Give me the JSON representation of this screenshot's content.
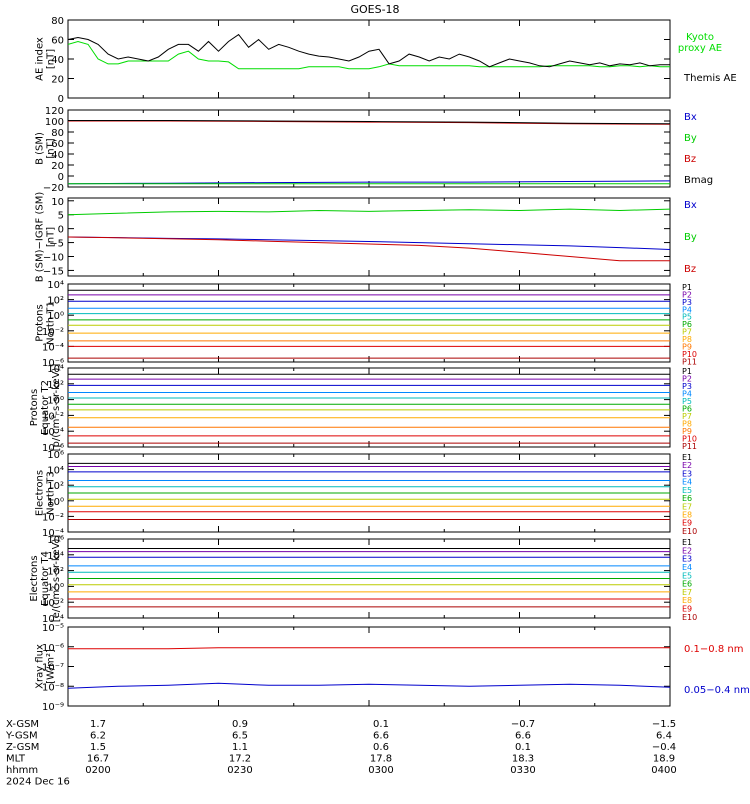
{
  "title": "GOES-18",
  "chart_data": [
    {
      "type": "line",
      "ylabel": [
        "AE index",
        "[nT]"
      ],
      "ylim": [
        0,
        80
      ],
      "yticks": [
        0,
        20,
        40,
        60,
        80
      ],
      "ytick_labels": [
        "0",
        "20",
        "40",
        "60",
        "80"
      ],
      "log": false,
      "x": [
        0,
        2,
        4,
        6,
        8,
        10,
        12,
        14,
        16,
        18,
        20,
        22,
        24,
        26,
        28,
        30,
        32,
        34,
        36,
        38,
        40,
        42,
        44,
        46,
        48,
        50,
        52,
        54,
        56,
        58,
        60,
        62,
        64,
        66,
        68,
        70,
        72,
        74,
        76,
        78,
        80,
        82,
        84,
        86,
        88,
        90,
        92,
        94,
        96,
        98,
        100,
        102,
        104,
        106,
        108,
        110,
        112,
        114,
        116,
        118,
        120
      ],
      "series": [
        {
          "name": "Kyoto proxy AE",
          "label_lines": [
            "Kyoto",
            "proxy AE"
          ],
          "color": "#00dd00",
          "values": [
            55,
            58,
            55,
            40,
            35,
            35,
            38,
            38,
            38,
            38,
            38,
            45,
            48,
            40,
            38,
            38,
            37,
            30,
            30,
            30,
            30,
            30,
            30,
            30,
            32,
            32,
            32,
            32,
            30,
            30,
            30,
            32,
            35,
            33,
            33,
            33,
            33,
            33,
            33,
            33,
            33,
            32,
            32,
            32,
            32,
            32,
            32,
            32,
            33,
            33,
            33,
            33,
            33,
            32,
            32,
            33,
            33,
            32,
            33,
            32,
            32
          ]
        },
        {
          "name": "Themis AE",
          "label_lines": [
            "Themis AE"
          ],
          "color": "#000000",
          "values": [
            60,
            62,
            60,
            55,
            45,
            40,
            42,
            40,
            38,
            42,
            50,
            55,
            55,
            48,
            58,
            48,
            58,
            65,
            52,
            60,
            50,
            55,
            52,
            48,
            45,
            43,
            42,
            40,
            38,
            42,
            48,
            50,
            35,
            38,
            45,
            42,
            38,
            42,
            40,
            45,
            42,
            38,
            32,
            36,
            40,
            38,
            36,
            33,
            32,
            35,
            38,
            36,
            34,
            36,
            33,
            35,
            34,
            36,
            33,
            34,
            34
          ]
        }
      ]
    },
    {
      "type": "line",
      "ylabel": [
        "B (SM)",
        "[nT]"
      ],
      "ylim": [
        -20,
        120
      ],
      "yticks": [
        -20,
        0,
        20,
        40,
        60,
        80,
        100,
        120
      ],
      "ytick_labels": [
        "−20",
        "0",
        "20",
        "40",
        "60",
        "80",
        "100",
        "120"
      ],
      "log": false,
      "x": [
        0,
        20,
        40,
        60,
        80,
        100,
        120
      ],
      "series": [
        {
          "name": "Bx",
          "color": "#0000cc",
          "values": [
            -14,
            -13,
            -12,
            -11,
            -11,
            -10,
            -9
          ]
        },
        {
          "name": "By",
          "color": "#00cc00",
          "values": [
            -14,
            -14,
            -14,
            -14,
            -14,
            -14,
            -14
          ]
        },
        {
          "name": "Bz",
          "color": "#cc0000",
          "values": [
            100,
            100,
            99,
            98,
            97,
            95,
            94
          ]
        },
        {
          "name": "Bmag",
          "color": "#000000",
          "values": [
            101,
            101,
            100,
            99,
            98,
            96,
            95
          ]
        }
      ]
    },
    {
      "type": "line",
      "ylabel": [
        "B (SM)−IGRF (SM)",
        "[nT]"
      ],
      "ylim": [
        -17,
        11
      ],
      "yticks": [
        -15,
        -10,
        -5,
        0,
        5,
        10
      ],
      "ytick_labels": [
        "−15",
        "−10",
        "−5",
        "0",
        "5",
        "10"
      ],
      "log": false,
      "x": [
        0,
        10,
        20,
        30,
        40,
        50,
        60,
        70,
        80,
        90,
        100,
        110,
        120
      ],
      "series": [
        {
          "name": "Bx",
          "color": "#0000cc",
          "values": [
            -3,
            -3.2,
            -3.5,
            -3.7,
            -4,
            -4.3,
            -4.6,
            -5,
            -5.4,
            -5.8,
            -6.2,
            -6.8,
            -7.5
          ]
        },
        {
          "name": "By",
          "color": "#00cc00",
          "values": [
            5,
            5.5,
            6,
            6.2,
            6,
            6.5,
            6.2,
            6.5,
            6.8,
            6.5,
            7,
            6.5,
            7
          ]
        },
        {
          "name": "Bz",
          "color": "#cc0000",
          "values": [
            -3,
            -3.3,
            -3.6,
            -4,
            -4.5,
            -5,
            -5.5,
            -6,
            -7,
            -8.5,
            -10,
            -11.5,
            -11.5
          ]
        }
      ]
    },
    {
      "type": "line",
      "ylabel": [
        "Protons",
        "North T1"
      ],
      "ylim": [
        -6,
        4
      ],
      "yticks": [
        -6,
        -4,
        -2,
        0,
        2,
        4
      ],
      "ytick_labels": [
        "10⁻⁶",
        "10⁻⁴",
        "10⁻²",
        "10⁰",
        "10²",
        "10⁴"
      ],
      "log": true,
      "x": [
        0,
        120
      ],
      "series": [
        {
          "name": "P1",
          "color": "#000000",
          "values": [
            3.2,
            3.2
          ]
        },
        {
          "name": "P2",
          "color": "#7700aa",
          "values": [
            2.6,
            2.6
          ]
        },
        {
          "name": "P3",
          "color": "#0000cc",
          "values": [
            1.8,
            1.8
          ]
        },
        {
          "name": "P4",
          "color": "#0088ff",
          "values": [
            0.9,
            0.9
          ]
        },
        {
          "name": "P5",
          "color": "#00bbbb",
          "values": [
            0.2,
            0.2
          ]
        },
        {
          "name": "P6",
          "color": "#00aa00",
          "values": [
            -0.6,
            -0.6
          ]
        },
        {
          "name": "P7",
          "color": "#bbcc00",
          "values": [
            -1.3,
            -1.3
          ]
        },
        {
          "name": "P8",
          "color": "#ffaa00",
          "values": [
            -2.3,
            -2.3
          ]
        },
        {
          "name": "P9",
          "color": "#ff7700",
          "values": [
            -3.3,
            -3.3
          ]
        },
        {
          "name": "P10",
          "color": "#dd0000",
          "values": [
            -4,
            -4
          ]
        },
        {
          "name": "P11",
          "color": "#aa0000",
          "values": [
            -5.5,
            -5.5
          ]
        }
      ]
    },
    {
      "type": "line",
      "ylabel": [
        "Protons",
        "Equator T2",
        "[p/(cm²-s-sr-keV)]"
      ],
      "ylim": [
        -6,
        4
      ],
      "yticks": [
        -6,
        -4,
        -2,
        0,
        2,
        4
      ],
      "ytick_labels": [
        "10⁻⁶",
        "10⁻⁴",
        "10⁻²",
        "10⁰",
        "10²",
        "10⁴"
      ],
      "log": true,
      "x": [
        0,
        120
      ],
      "series": [
        {
          "name": "P1",
          "color": "#000000",
          "values": [
            3.2,
            3.2
          ]
        },
        {
          "name": "P2",
          "color": "#7700aa",
          "values": [
            2.6,
            2.6
          ]
        },
        {
          "name": "P3",
          "color": "#0000cc",
          "values": [
            1.8,
            1.8
          ]
        },
        {
          "name": "P4",
          "color": "#0088ff",
          "values": [
            0.9,
            0.9
          ]
        },
        {
          "name": "P5",
          "color": "#00bbbb",
          "values": [
            0.2,
            0.2
          ]
        },
        {
          "name": "P6",
          "color": "#00aa00",
          "values": [
            -0.6,
            -0.6
          ]
        },
        {
          "name": "P7",
          "color": "#bbcc00",
          "values": [
            -1.3,
            -1.3
          ]
        },
        {
          "name": "P8",
          "color": "#ffaa00",
          "values": [
            -2.3,
            -2.3
          ]
        },
        {
          "name": "P9",
          "color": "#ff7700",
          "values": [
            -3.5,
            -3.5
          ]
        },
        {
          "name": "P10",
          "color": "#dd0000",
          "values": [
            -4.6,
            -4.6
          ]
        },
        {
          "name": "P11",
          "color": "#aa0000",
          "values": [
            -5.5,
            -5.5
          ]
        }
      ]
    },
    {
      "type": "line",
      "ylabel": [
        "Electrons",
        "North T3"
      ],
      "ylim": [
        -4,
        6
      ],
      "yticks": [
        -4,
        -2,
        0,
        2,
        4,
        6
      ],
      "ytick_labels": [
        "10⁻⁴",
        "10⁻²",
        "10⁰",
        "10²",
        "10⁴",
        "10⁶"
      ],
      "log": true,
      "x": [
        0,
        120
      ],
      "series": [
        {
          "name": "E1",
          "color": "#000000",
          "values": [
            4.8,
            4.8
          ]
        },
        {
          "name": "E2",
          "color": "#7700aa",
          "values": [
            4.4,
            4.4
          ]
        },
        {
          "name": "E3",
          "color": "#0000cc",
          "values": [
            3.7,
            3.7
          ]
        },
        {
          "name": "E4",
          "color": "#0088ff",
          "values": [
            2.6,
            2.6
          ]
        },
        {
          "name": "E5",
          "color": "#00bbbb",
          "values": [
            1.8,
            1.8
          ]
        },
        {
          "name": "E6",
          "color": "#00aa00",
          "values": [
            1.0,
            1.0
          ]
        },
        {
          "name": "E7",
          "color": "#bbcc00",
          "values": [
            0.2,
            0.2
          ]
        },
        {
          "name": "E8",
          "color": "#ffaa00",
          "values": [
            -0.7,
            -0.7
          ]
        },
        {
          "name": "E9",
          "color": "#dd0000",
          "values": [
            -1.4,
            -1.4
          ]
        },
        {
          "name": "E10",
          "color": "#aa0000",
          "values": [
            -2.4,
            -2.4
          ]
        }
      ]
    },
    {
      "type": "line",
      "ylabel": [
        "Electrons",
        "Equator T4",
        "[e/(cm²-s-sr-keV)]"
      ],
      "ylim": [
        -4,
        6
      ],
      "yticks": [
        -4,
        -2,
        0,
        2,
        4,
        6
      ],
      "ytick_labels": [
        "10⁻⁴",
        "10⁻²",
        "10⁰",
        "10²",
        "10⁴",
        "10⁶"
      ],
      "log": true,
      "x": [
        0,
        120
      ],
      "series": [
        {
          "name": "E1",
          "color": "#000000",
          "values": [
            4.8,
            4.8
          ]
        },
        {
          "name": "E2",
          "color": "#7700aa",
          "values": [
            4.4,
            4.4
          ]
        },
        {
          "name": "E3",
          "color": "#0000cc",
          "values": [
            3.7,
            3.7
          ]
        },
        {
          "name": "E4",
          "color": "#0088ff",
          "values": [
            2.6,
            2.6
          ]
        },
        {
          "name": "E5",
          "color": "#00bbbb",
          "values": [
            1.8,
            1.8
          ]
        },
        {
          "name": "E6",
          "color": "#00aa00",
          "values": [
            1.0,
            1.0
          ]
        },
        {
          "name": "E7",
          "color": "#bbcc00",
          "values": [
            0.2,
            0.2
          ]
        },
        {
          "name": "E8",
          "color": "#ffaa00",
          "values": [
            -0.7,
            -0.7
          ]
        },
        {
          "name": "E9",
          "color": "#dd0000",
          "values": [
            -1.6,
            -1.6
          ]
        },
        {
          "name": "E10",
          "color": "#aa0000",
          "values": [
            -2.6,
            -2.6
          ]
        }
      ]
    },
    {
      "type": "line",
      "ylabel": [
        "Xray flux",
        "[W/m²]"
      ],
      "ylim": [
        -9,
        -5
      ],
      "yticks": [
        -9,
        -8,
        -7,
        -6,
        -5
      ],
      "ytick_labels": [
        "10⁻⁹",
        "10⁻⁸",
        "10⁻⁷",
        "10⁻⁶",
        "10⁻⁵"
      ],
      "log": true,
      "x": [
        0,
        10,
        20,
        30,
        40,
        50,
        60,
        70,
        80,
        90,
        100,
        110,
        120
      ],
      "series": [
        {
          "name": "0.1−0.8 nm",
          "color": "#dd0000",
          "values": [
            -6.1,
            -6.1,
            -6.1,
            -6.05,
            -6.05,
            -6.05,
            -6.05,
            -6.05,
            -6.05,
            -6.05,
            -6.05,
            -6.05,
            -6.05
          ]
        },
        {
          "name": "0.05−0.4 nm",
          "color": "#0000cc",
          "values": [
            -8.1,
            -8.0,
            -7.95,
            -7.85,
            -7.95,
            -7.95,
            -7.9,
            -7.95,
            -8.0,
            -7.95,
            -7.9,
            -7.95,
            -8.05
          ]
        }
      ]
    }
  ],
  "x_axis": {
    "rows": [
      {
        "label": "X-GSM",
        "values": [
          "1.7",
          "0.9",
          "0.1",
          "−0.7",
          "−1.5"
        ]
      },
      {
        "label": "Y-GSM",
        "values": [
          "6.2",
          "6.5",
          "6.6",
          "6.6",
          "6.4"
        ]
      },
      {
        "label": "Z-GSM",
        "values": [
          "1.5",
          "1.1",
          "0.6",
          "0.1",
          "−0.4"
        ]
      },
      {
        "label": "MLT",
        "values": [
          "16.7",
          "17.2",
          "17.8",
          "18.3",
          "18.9"
        ]
      },
      {
        "label": "hhmm",
        "values": [
          "0200",
          "0230",
          "0300",
          "0330",
          "0400"
        ]
      }
    ],
    "date": "2024 Dec 16"
  }
}
